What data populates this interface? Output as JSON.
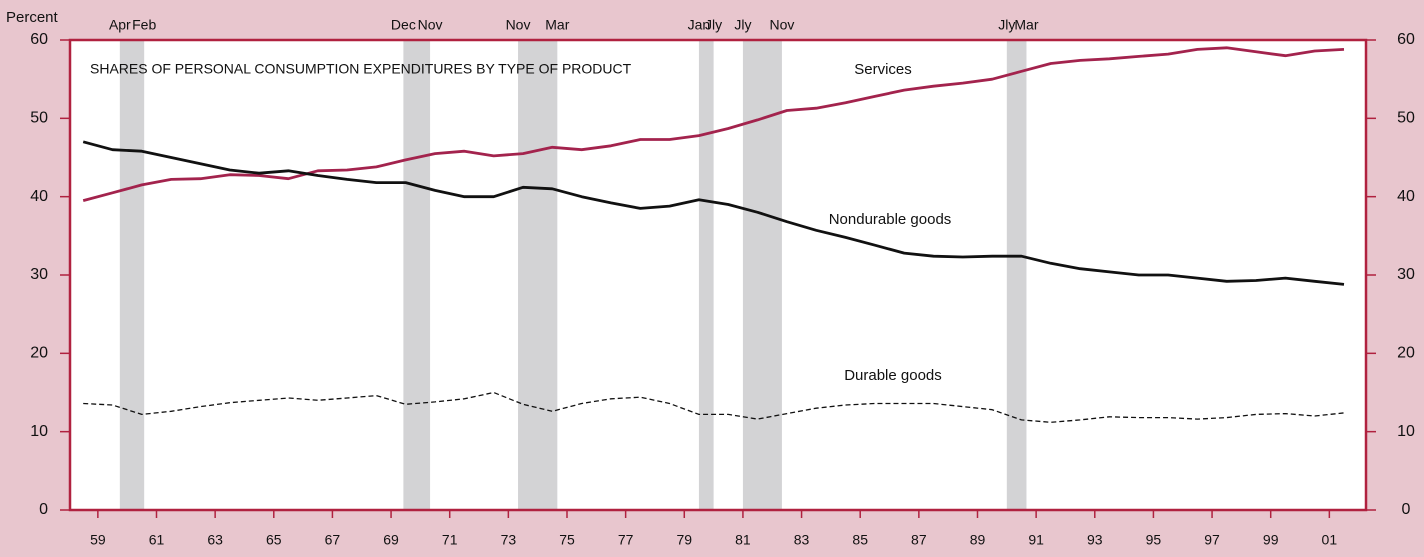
{
  "chart_data": {
    "type": "line",
    "title": "SHARES OF PERSONAL CONSUMPTION EXPENDITURES BY TYPE OF PRODUCT",
    "y_label": "Percent",
    "x": [
      1959,
      1960,
      1961,
      1962,
      1963,
      1964,
      1965,
      1966,
      1967,
      1968,
      1969,
      1970,
      1971,
      1972,
      1973,
      1974,
      1975,
      1976,
      1977,
      1978,
      1979,
      1980,
      1981,
      1982,
      1983,
      1984,
      1985,
      1986,
      1987,
      1988,
      1989,
      1990,
      1991,
      1992,
      1993,
      1994,
      1995,
      1996,
      1997,
      1998,
      1999,
      2000,
      2001,
      2002
    ],
    "series": [
      {
        "name": "Services",
        "color": "#a3234d",
        "dash": false,
        "values": [
          39.5,
          40.5,
          41.5,
          42.2,
          42.3,
          42.8,
          42.7,
          42.3,
          43.3,
          43.4,
          43.8,
          44.7,
          45.5,
          45.8,
          45.2,
          45.5,
          46.3,
          46.0,
          46.5,
          47.3,
          47.3,
          47.8,
          48.7,
          49.8,
          51.0,
          51.3,
          52.0,
          52.8,
          53.6,
          54.1,
          54.5,
          55.0,
          56.0,
          57.0,
          57.4,
          57.6,
          57.9,
          58.2,
          58.8,
          59.0,
          58.5,
          58.0,
          58.6,
          58.8
        ]
      },
      {
        "name": "Nondurable goods",
        "color": "#111111",
        "dash": false,
        "values": [
          47.0,
          46.0,
          45.8,
          45.0,
          44.2,
          43.4,
          43.0,
          43.3,
          42.7,
          42.2,
          41.8,
          41.8,
          40.8,
          40.0,
          40.0,
          41.2,
          41.0,
          40.0,
          39.2,
          38.5,
          38.8,
          39.6,
          39.0,
          38.0,
          36.8,
          35.7,
          34.8,
          33.8,
          32.8,
          32.4,
          32.3,
          32.4,
          32.4,
          31.5,
          30.8,
          30.4,
          30.0,
          30.0,
          29.6,
          29.2,
          29.3,
          29.6,
          29.2,
          28.8
        ]
      },
      {
        "name": "Durable goods",
        "color": "#111111",
        "dash": true,
        "values": [
          13.6,
          13.4,
          12.2,
          12.6,
          13.2,
          13.7,
          14.0,
          14.3,
          14.0,
          14.3,
          14.6,
          13.5,
          13.8,
          14.2,
          15.0,
          13.5,
          12.6,
          13.6,
          14.2,
          14.4,
          13.6,
          12.2,
          12.2,
          11.6,
          12.3,
          13.0,
          13.4,
          13.6,
          13.6,
          13.6,
          13.2,
          12.8,
          11.5,
          11.2,
          11.5,
          11.9,
          11.8,
          11.8,
          11.6,
          11.8,
          12.2,
          12.3,
          12.0,
          12.4
        ]
      }
    ],
    "recessions": [
      {
        "start": 1960.25,
        "end": 1961.08,
        "start_label": "Apr",
        "end_label": "Feb"
      },
      {
        "start": 1969.92,
        "end": 1970.83,
        "start_label": "Dec",
        "end_label": "Nov"
      },
      {
        "start": 1973.83,
        "end": 1975.17,
        "start_label": "Nov",
        "end_label": "Mar"
      },
      {
        "start": 1980.0,
        "end": 1980.5,
        "start_label": "Jan",
        "end_label": "Jly"
      },
      {
        "start": 1981.5,
        "end": 1982.83,
        "start_label": "Jly",
        "end_label": "Nov"
      },
      {
        "start": 1990.5,
        "end": 1991.17,
        "start_label": "Jly",
        "end_label": "Mar"
      }
    ],
    "xlim": [
      1958.55,
      2002.75
    ],
    "xticks": [
      {
        "value": 1959.5,
        "label": "59"
      },
      {
        "value": 1961.5,
        "label": "61"
      },
      {
        "value": 1963.5,
        "label": "63"
      },
      {
        "value": 1965.5,
        "label": "65"
      },
      {
        "value": 1967.5,
        "label": "67"
      },
      {
        "value": 1969.5,
        "label": "69"
      },
      {
        "value": 1971.5,
        "label": "71"
      },
      {
        "value": 1973.5,
        "label": "73"
      },
      {
        "value": 1975.5,
        "label": "75"
      },
      {
        "value": 1977.5,
        "label": "77"
      },
      {
        "value": 1979.5,
        "label": "79"
      },
      {
        "value": 1981.5,
        "label": "81"
      },
      {
        "value": 1983.5,
        "label": "83"
      },
      {
        "value": 1985.5,
        "label": "85"
      },
      {
        "value": 1987.5,
        "label": "87"
      },
      {
        "value": 1989.5,
        "label": "89"
      },
      {
        "value": 1991.5,
        "label": "91"
      },
      {
        "value": 1993.5,
        "label": "93"
      },
      {
        "value": 1995.5,
        "label": "95"
      },
      {
        "value": 1997.5,
        "label": "97"
      },
      {
        "value": 1999.5,
        "label": "99"
      },
      {
        "value": 2001.5,
        "label": "01"
      }
    ],
    "ylim": [
      0,
      60
    ],
    "yticks": [
      0,
      10,
      20,
      30,
      40,
      50,
      60
    ],
    "y2lim": [
      0,
      60
    ],
    "y2ticks": [
      0,
      10,
      20,
      30,
      40,
      50,
      60
    ],
    "grid": false
  }
}
